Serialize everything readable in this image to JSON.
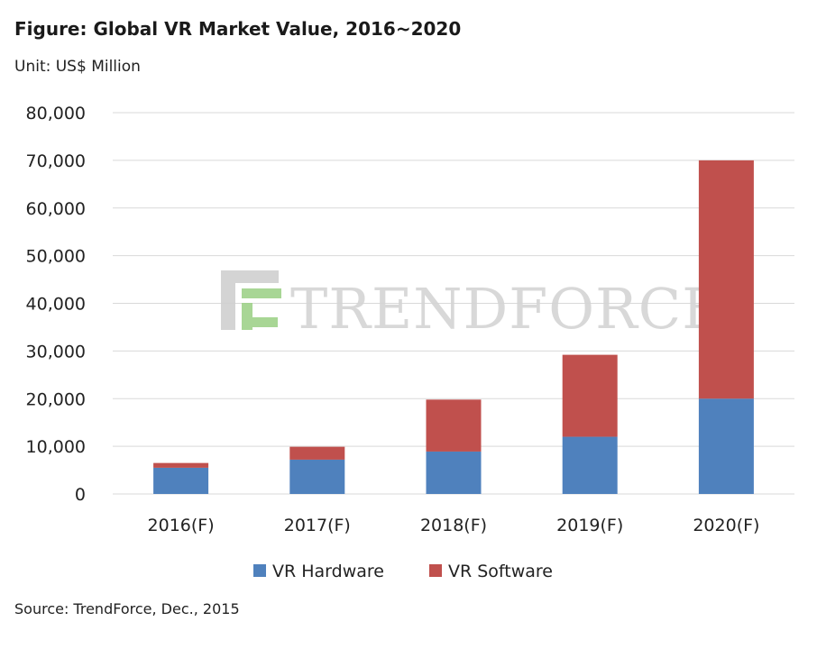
{
  "title": "Figure: Global VR Market Value, 2016~2020",
  "unit_label": "Unit: US$ Million",
  "source": "Source: TrendForce, Dec., 2015",
  "watermark": "TRENDFORCE",
  "colors": {
    "hardware": "#4f81bd",
    "software": "#c0504d",
    "grid": "#d9d9d9",
    "watermark": "#d4d4d4",
    "watermark_logo": "#9fd28a"
  },
  "chart_data": {
    "type": "bar",
    "stacked": true,
    "categories": [
      "2016(F)",
      "2017(F)",
      "2018(F)",
      "2019(F)",
      "2020(F)"
    ],
    "series": [
      {
        "name": "VR Hardware",
        "values": [
          5500,
          7200,
          8900,
          12000,
          20000
        ]
      },
      {
        "name": "VR Software",
        "values": [
          1000,
          2700,
          10900,
          17200,
          50000
        ]
      }
    ],
    "ylim": [
      0,
      80000
    ],
    "yticks": [
      "0",
      "10,000",
      "20,000",
      "30,000",
      "40,000",
      "50,000",
      "60,000",
      "70,000",
      "80,000"
    ],
    "ytick_values": [
      0,
      10000,
      20000,
      30000,
      40000,
      50000,
      60000,
      70000,
      80000
    ],
    "grid": true,
    "legend": "bottom"
  }
}
